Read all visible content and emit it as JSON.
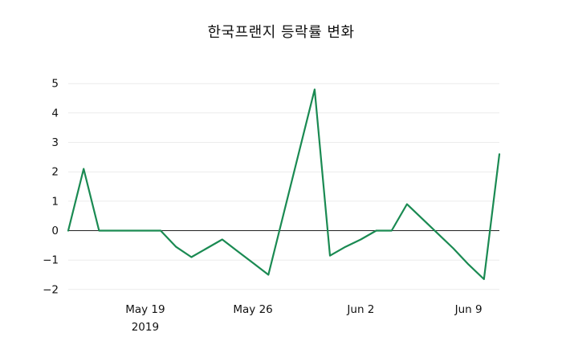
{
  "chart_data": {
    "type": "line",
    "title": "한국프랜지 등락률 변화",
    "xlabel": "",
    "ylabel": "",
    "grid": true,
    "zeroline": true,
    "legend": "none",
    "background": "#ffffff",
    "ylim": [
      -2.25,
      5.25
    ],
    "y_ticks": [
      5,
      4,
      3,
      2,
      1,
      0,
      -1,
      -2
    ],
    "x_ticks": [
      {
        "index": 5,
        "label": "May 19",
        "sublabel": "2019"
      },
      {
        "index": 12,
        "label": "May 26",
        "sublabel": ""
      },
      {
        "index": 19,
        "label": "Jun 2",
        "sublabel": ""
      },
      {
        "index": 26,
        "label": "Jun 9",
        "sublabel": ""
      }
    ],
    "x": [
      "2019-05-14",
      "2019-05-15",
      "2019-05-16",
      "2019-05-17",
      "2019-05-18",
      "2019-05-19",
      "2019-05-20",
      "2019-05-21",
      "2019-05-22",
      "2019-05-23",
      "2019-05-24",
      "2019-05-25",
      "2019-05-26",
      "2019-05-27",
      "2019-05-28",
      "2019-05-29",
      "2019-05-30",
      "2019-05-31",
      "2019-06-01",
      "2019-06-02",
      "2019-06-03",
      "2019-06-04",
      "2019-06-05",
      "2019-06-06",
      "2019-06-07",
      "2019-06-08",
      "2019-06-09",
      "2019-06-10",
      "2019-06-11"
    ],
    "series": [
      {
        "name": "등락률",
        "color": "#1a8a52",
        "values": [
          0,
          2.1,
          0,
          0,
          0,
          0,
          0,
          -0.55,
          -0.9,
          -0.6,
          -0.3,
          -0.7,
          -1.1,
          -1.5,
          0.6,
          2.7,
          4.8,
          -0.85,
          -0.55,
          -0.3,
          0,
          0,
          0.9,
          0.4,
          -0.1,
          -0.6,
          -1.15,
          -1.65,
          2.6
        ]
      }
    ]
  }
}
